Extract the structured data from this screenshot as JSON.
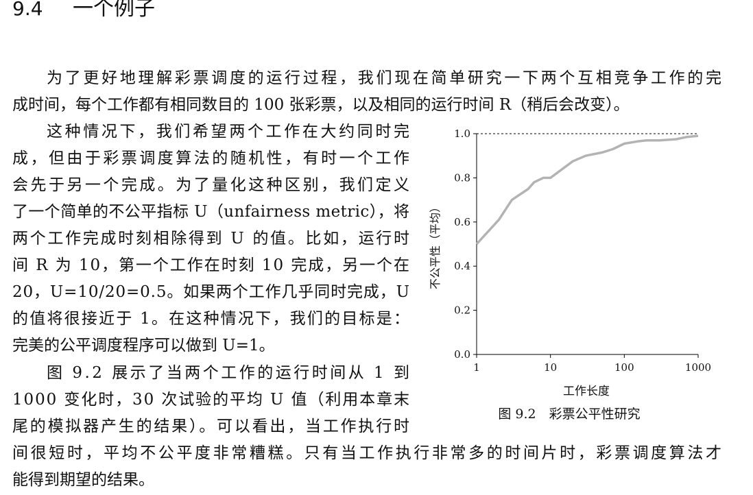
{
  "header": {
    "number": "9.4",
    "title": "一个例子"
  },
  "paragraphs": [
    {
      "lines": [
        "为了更好地理解彩票调度的运行过程，我们现在简单研究一下两个互相竞争工作的完",
        "成时间，每个工作都有相同数目的 100 张彩票，以及相同的运行时间 R（稍后会改变）。"
      ]
    },
    {
      "lines": [
        "这种情况下，我们希望两个工作在大约同时完",
        "成，但由于彩票调度算法的随机性，有时一个工作",
        "会先于另一个完成。为了量化这种区别，我们定义",
        "了一个简单的不公平指标 U（unfairness metric），将",
        "两个工作完成时刻相除得到 U 的值。比如，运行时",
        "间 R 为 10，第一个工作在时刻 10 完成，另一个在",
        "20，U=10/20=0.5。如果两个工作几乎同时完成，U",
        "的值将很接近于 1。在这种情况下，我们的目标是：",
        "完美的公平调度程序可以做到 U=1。"
      ]
    },
    {
      "lines": [
        "图 9.2 展示了当两个工作的运行时间从 1 到",
        "1000 变化时，30 次试验的平均 U 值（利用本章末",
        "尾的模拟器产生的结果）。可以看出，当工作执行时",
        "间很短时，平均不公平度非常糟糕。只有当工作执行非常多的时间片时，彩票调度算法才",
        "能得到期望的结果。"
      ]
    }
  ],
  "caption": "图 9.2　彩票公平性研究",
  "chart_data": {
    "type": "line",
    "x_label": "工作长度",
    "y_label": "不公平性（平均）",
    "x": [
      1,
      2,
      3,
      5,
      6,
      8,
      10,
      20,
      30,
      50,
      70,
      100,
      150,
      200,
      300,
      500,
      700,
      1000
    ],
    "values": [
      0.5,
      0.61,
      0.7,
      0.75,
      0.78,
      0.8,
      0.8,
      0.875,
      0.9,
      0.915,
      0.93,
      0.955,
      0.965,
      0.97,
      0.97,
      0.975,
      0.985,
      0.99
    ],
    "color": "#b3b3b3",
    "x_log": true,
    "xlim": [
      1,
      1000
    ],
    "xticks": [
      1,
      10,
      100,
      1000
    ],
    "ylim": [
      0,
      1
    ],
    "yticks": [
      {
        "value": 0,
        "label": "0.0"
      },
      {
        "value": 0.2,
        "label": "0.2"
      },
      {
        "value": 0.4,
        "label": "0.4"
      },
      {
        "value": 0.6,
        "label": "0.6"
      },
      {
        "value": 0.8,
        "label": "0.8"
      },
      {
        "value": 1,
        "label": "1.0"
      }
    ]
  }
}
